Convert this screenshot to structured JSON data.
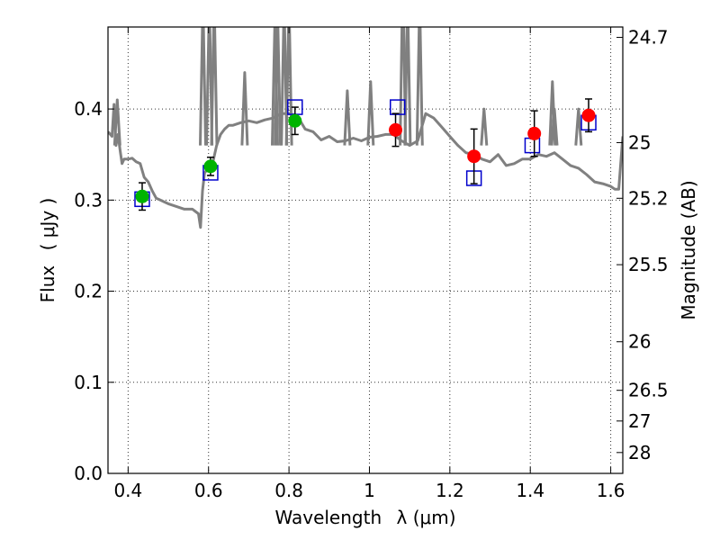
{
  "chart_data": {
    "type": "scatter",
    "xlabel_text": "Wavelength",
    "xlabel_math": "λ (μm)",
    "ylabel_text": "Flux",
    "ylabel_math": "( μJy )",
    "ylabel_right": "Magnitude (AB)",
    "xlim": [
      0.35,
      1.63
    ],
    "ylim": [
      0.0,
      0.49
    ],
    "x_ticks": [
      0.4,
      0.6,
      0.8,
      1.0,
      1.2,
      1.4,
      1.6
    ],
    "x_tick_labels": [
      "0.4",
      "0.6",
      "0.8",
      "1",
      "1.2",
      "1.4",
      "1.6"
    ],
    "y_ticks": [
      0.0,
      0.1,
      0.2,
      0.3,
      0.4
    ],
    "y_tick_labels": [
      "0.0",
      "0.1",
      "0.2",
      "0.3",
      "0.4"
    ],
    "right_ticks": [
      {
        "label": "24.7",
        "flux": 0.4786
      },
      {
        "label": "25",
        "flux": 0.3631
      },
      {
        "label": "25.2",
        "flux": 0.302
      },
      {
        "label": "25.5",
        "flux": 0.2291
      },
      {
        "label": "26",
        "flux": 0.1445
      },
      {
        "label": "26.5",
        "flux": 0.0912
      },
      {
        "label": "27",
        "flux": 0.0575
      },
      {
        "label": "28",
        "flux": 0.0229
      }
    ],
    "grid": true,
    "colors": {
      "model_line": "#808080",
      "green_points": "#00b400",
      "red_points": "#ff0000",
      "model_squares": "#0000cc",
      "error_bars": "#000000"
    },
    "series": [
      {
        "kind": "line",
        "x": [
          0.35,
          0.36,
          0.365,
          0.37,
          0.375,
          0.38,
          0.385,
          0.39,
          0.4,
          0.41,
          0.42,
          0.43,
          0.44,
          0.45,
          0.46,
          0.47,
          0.48,
          0.49,
          0.5,
          0.52,
          0.54,
          0.56,
          0.575,
          0.58,
          0.585,
          0.59,
          0.6,
          0.605,
          0.61,
          0.62,
          0.63,
          0.64,
          0.65,
          0.66,
          0.68,
          0.7,
          0.72,
          0.74,
          0.76,
          0.78,
          0.8,
          0.82,
          0.84,
          0.86,
          0.88,
          0.9,
          0.92,
          0.94,
          0.96,
          0.98,
          1.0,
          1.02,
          1.04,
          1.06,
          1.08,
          1.1,
          1.12,
          1.14,
          1.16,
          1.18,
          1.2,
          1.22,
          1.24,
          1.26,
          1.28,
          1.3,
          1.32,
          1.34,
          1.36,
          1.38,
          1.4,
          1.42,
          1.44,
          1.46,
          1.48,
          1.5,
          1.52,
          1.54,
          1.56,
          1.58,
          1.6,
          1.61,
          1.62,
          1.63
        ],
        "y": [
          0.375,
          0.37,
          0.405,
          0.36,
          0.372,
          0.355,
          0.34,
          0.345,
          0.345,
          0.346,
          0.342,
          0.34,
          0.325,
          0.32,
          0.31,
          0.302,
          0.3,
          0.298,
          0.296,
          0.293,
          0.29,
          0.29,
          0.285,
          0.27,
          0.31,
          0.33,
          0.335,
          0.335,
          0.34,
          0.36,
          0.372,
          0.378,
          0.382,
          0.382,
          0.385,
          0.387,
          0.385,
          0.388,
          0.39,
          0.395,
          0.395,
          0.393,
          0.378,
          0.375,
          0.366,
          0.37,
          0.364,
          0.365,
          0.368,
          0.365,
          0.369,
          0.37,
          0.372,
          0.372,
          0.365,
          0.36,
          0.365,
          0.395,
          0.39,
          0.38,
          0.37,
          0.36,
          0.352,
          0.35,
          0.345,
          0.342,
          0.35,
          0.338,
          0.34,
          0.345,
          0.345,
          0.35,
          0.348,
          0.352,
          0.345,
          0.338,
          0.335,
          0.328,
          0.32,
          0.318,
          0.315,
          0.312,
          0.312,
          0.37
        ]
      },
      {
        "kind": "emission_lines",
        "lines": [
          [
            0.373,
            0.41
          ],
          [
            0.586,
            0.52
          ],
          [
            0.602,
            0.52
          ],
          [
            0.614,
            0.52
          ],
          [
            0.69,
            0.44
          ],
          [
            0.765,
            0.5
          ],
          [
            0.772,
            0.5
          ],
          [
            0.788,
            0.52
          ],
          [
            0.8,
            0.52
          ],
          [
            0.945,
            0.42
          ],
          [
            1.003,
            0.43
          ],
          [
            1.083,
            0.55
          ],
          [
            1.095,
            0.52
          ],
          [
            1.125,
            0.52
          ],
          [
            1.285,
            0.4
          ],
          [
            1.455,
            0.43
          ],
          [
            1.46,
            0.4
          ],
          [
            1.52,
            0.4
          ]
        ]
      },
      {
        "kind": "points_with_errors",
        "color": "green",
        "x": [
          0.435,
          0.605,
          0.815
        ],
        "y": [
          0.304,
          0.337,
          0.387
        ],
        "yerr": [
          0.015,
          0.01,
          0.015
        ]
      },
      {
        "kind": "points_with_errors",
        "color": "red",
        "x": [
          1.065,
          1.26,
          1.41,
          1.545
        ],
        "y": [
          0.377,
          0.348,
          0.373,
          0.393
        ],
        "yerr": [
          0.018,
          0.03,
          0.025,
          0.018
        ]
      },
      {
        "kind": "model_squares",
        "x": [
          0.435,
          0.605,
          0.815,
          1.07,
          1.26,
          1.405,
          1.545
        ],
        "y": [
          0.301,
          0.33,
          0.402,
          0.402,
          0.324,
          0.36,
          0.385
        ]
      }
    ]
  }
}
